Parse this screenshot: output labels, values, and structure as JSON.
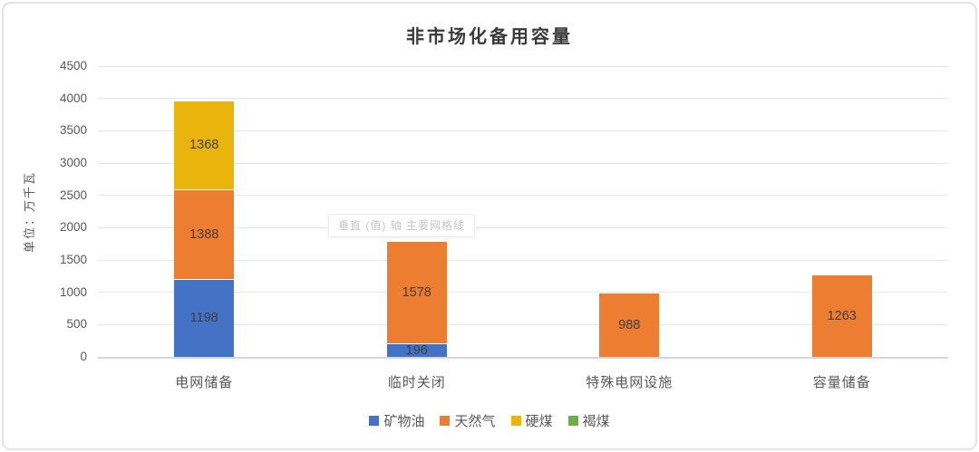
{
  "chart_data": {
    "type": "bar",
    "stacked": true,
    "title": "非市场化备用容量",
    "ylabel": "单位：万千瓦",
    "xlabel": "",
    "categories": [
      "电网储备",
      "临时关闭",
      "特殊电网设施",
      "容量储备"
    ],
    "series": [
      {
        "name": "矿物油",
        "color": "#4472C4",
        "values": [
          1198,
          196,
          0,
          0
        ]
      },
      {
        "name": "天然气",
        "color": "#ED7D31",
        "values": [
          1388,
          1578,
          988,
          1263
        ]
      },
      {
        "name": "硬煤",
        "color": "#E9B50D",
        "values": [
          1368,
          0,
          0,
          0
        ]
      },
      {
        "name": "褐煤",
        "color": "#70AD47",
        "values": [
          0,
          0,
          0,
          0
        ]
      }
    ],
    "ylim": [
      0,
      4500
    ],
    "yticks": [
      0,
      500,
      1000,
      1500,
      2000,
      2500,
      3000,
      3500,
      4000,
      4500
    ],
    "grid": true,
    "legend_position": "bottom",
    "data_labels": true
  },
  "overlay": {
    "gridline_tooltip": "垂直 (值) 轴 主要网格线"
  }
}
